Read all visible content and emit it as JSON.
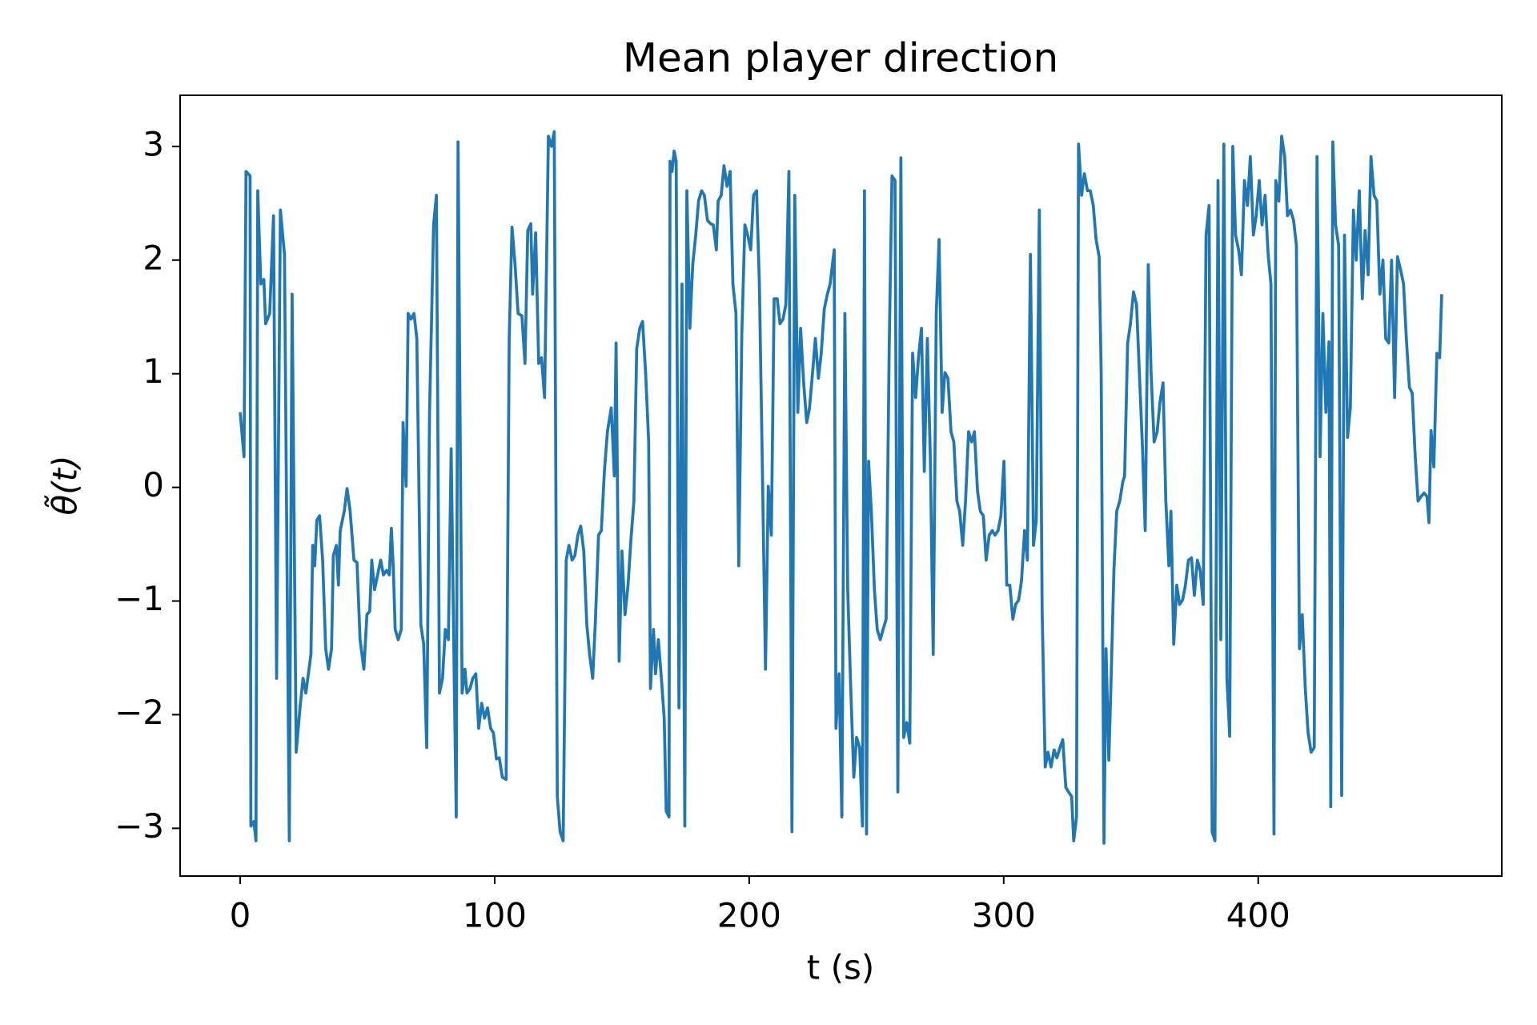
{
  "chart_data": {
    "type": "line",
    "title": "Mean player direction",
    "xlabel": "t (s)",
    "ylabel": "θ̃(t)",
    "color": "#1f77b4",
    "x": [
      0,
      1.5,
      2.3,
      3.9,
      4.2,
      5.4,
      6.2,
      6.9,
      8.1,
      9.3,
      10.0,
      11.6,
      13.1,
      14.3,
      15.8,
      17.4,
      19.3,
      20.4,
      22.0,
      23.5,
      24.7,
      25.8,
      27.8,
      28.5,
      29.3,
      30.1,
      31.2,
      32.4,
      33.6,
      34.7,
      35.9,
      36.6,
      37.8,
      38.6,
      39.3,
      40.9,
      42.0,
      43.2,
      44.7,
      45.9,
      47.1,
      48.6,
      49.8,
      50.9,
      51.7,
      52.8,
      54.0,
      55.2,
      56.3,
      57.5,
      58.6,
      59.4,
      60.2,
      60.9,
      62.1,
      63.3,
      64.0,
      65.2,
      66.0,
      67.1,
      68.3,
      69.4,
      71.0,
      72.1,
      73.3,
      74.4,
      76.0,
      77.1,
      78.3,
      79.5,
      80.6,
      81.8,
      82.9,
      84.1,
      84.9,
      85.6,
      87.2,
      88.3,
      89.1,
      90.3,
      91.4,
      92.6,
      93.7,
      94.9,
      96.0,
      97.2,
      98.4,
      99.5,
      100.7,
      101.8,
      103.0,
      104.5,
      105.7,
      106.8,
      108.0,
      109.2,
      110.7,
      111.9,
      113.0,
      114.2,
      114.9,
      116.1,
      117.3,
      118.4,
      119.6,
      121.1,
      122.3,
      123.4,
      124.6,
      125.7,
      126.9,
      128.1,
      129.2,
      130.4,
      131.5,
      132.7,
      133.8,
      135.0,
      136.2,
      137.3,
      138.5,
      139.6,
      140.8,
      141.9,
      143.1,
      144.3,
      145.8,
      147.0,
      147.7,
      148.9,
      150.0,
      151.2,
      152.4,
      153.5,
      154.7,
      155.8,
      157.0,
      158.1,
      159.3,
      160.5,
      161.2,
      162.4,
      163.2,
      164.3,
      165.5,
      166.6,
      167.4,
      168.5,
      168.9,
      169.7,
      170.5,
      171.3,
      172.4,
      173.6,
      174.7,
      175.5,
      176.7,
      177.8,
      179.0,
      180.1,
      181.3,
      182.4,
      183.6,
      184.8,
      185.9,
      187.1,
      187.8,
      189.0,
      190.1,
      191.3,
      192.5,
      193.6,
      194.8,
      195.9,
      197.1,
      198.3,
      199.4,
      200.6,
      201.7,
      202.9,
      204.0,
      205.2,
      206.4,
      207.5,
      208.7,
      209.8,
      211.0,
      212.1,
      213.3,
      214.4,
      215.6,
      216.8,
      217.9,
      219.1,
      220.2,
      221.4,
      222.6,
      223.7,
      224.9,
      226.0,
      227.2,
      228.3,
      229.5,
      230.7,
      231.8,
      233.4,
      234.1,
      235.3,
      236.4,
      237.6,
      238.7,
      239.9,
      241.1,
      242.2,
      243.4,
      244.5,
      245.3,
      246.1,
      246.9,
      248.0,
      249.2,
      250.3,
      251.5,
      252.6,
      253.8,
      255.0,
      256.1,
      257.3,
      258.4,
      259.6,
      260.7,
      261.9,
      263.1,
      264.2,
      265.4,
      266.5,
      267.7,
      268.8,
      270.0,
      271.2,
      272.3,
      273.5,
      274.6,
      275.8,
      276.9,
      278.1,
      279.3,
      280.4,
      281.6,
      282.7,
      283.9,
      285.0,
      286.2,
      287.4,
      288.5,
      289.7,
      290.8,
      292.0,
      293.1,
      294.3,
      295.5,
      296.6,
      297.8,
      298.9,
      300.1,
      301.2,
      302.4,
      303.6,
      304.7,
      305.9,
      307.0,
      308.2,
      309.3,
      310.5,
      311.7,
      312.8,
      314.0,
      315.1,
      316.3,
      317.4,
      318.6,
      319.8,
      320.9,
      322.1,
      323.2,
      324.4,
      325.5,
      326.7,
      327.5,
      328.6,
      329.4,
      330.6,
      331.7,
      332.9,
      334.0,
      335.2,
      336.3,
      337.5,
      338.3,
      339.4,
      340.2,
      341.3,
      342.1,
      343.3,
      344.4,
      345.6,
      346.8,
      347.5,
      348.7,
      349.8,
      351.0,
      352.2,
      353.3,
      354.5,
      355.6,
      356.8,
      357.9,
      359.1,
      360.3,
      361.4,
      362.6,
      363.7,
      364.9,
      365.7,
      366.8,
      368.0,
      369.1,
      370.3,
      371.4,
      372.6,
      373.8,
      374.9,
      376.1,
      377.2,
      378.4,
      379.5,
      380.7,
      381.9,
      383.0,
      384.2,
      385.3,
      386.5,
      387.7,
      388.8,
      390.0,
      391.1,
      392.3,
      393.4,
      394.6,
      395.8,
      396.9,
      398.1,
      399.2,
      400.4,
      401.5,
      402.7,
      403.9,
      405.0,
      406.2,
      406.9,
      408.1,
      409.2,
      410.4,
      411.5,
      412.7,
      413.9,
      415.0,
      416.2,
      417.3,
      418.5,
      419.6,
      420.8,
      422.0,
      423.1,
      424.3,
      425.4,
      426.6,
      427.8,
      428.5,
      429.3,
      430.4,
      431.6,
      432.8,
      433.9,
      435.1,
      436.2,
      437.4,
      438.5,
      439.7,
      440.9,
      442.0,
      443.2,
      444.3,
      445.5,
      446.6,
      447.8,
      449.0,
      450.1,
      451.3,
      452.4,
      453.6,
      454.7,
      455.9,
      457.1,
      458.2,
      459.4,
      460.5,
      461.7,
      462.8,
      464.0,
      465.2,
      466.3,
      467.1,
      467.9,
      469.0,
      470.2,
      471.3,
      472.1
    ],
    "values": [
      0.66,
      0.27,
      2.78,
      2.74,
      -2.98,
      -2.94,
      -3.11,
      2.61,
      1.79,
      1.83,
      1.44,
      1.53,
      2.39,
      -1.68,
      2.44,
      2.05,
      -3.11,
      1.7,
      -2.33,
      -1.94,
      -1.68,
      -1.81,
      -1.47,
      -0.51,
      -0.69,
      -0.29,
      -0.25,
      -0.64,
      -1.42,
      -1.6,
      -1.42,
      -0.6,
      -0.51,
      -0.86,
      -0.38,
      -0.21,
      -0.01,
      -0.21,
      -0.64,
      -0.66,
      -1.34,
      -1.6,
      -1.12,
      -1.09,
      -0.64,
      -0.9,
      -0.77,
      -0.64,
      -0.77,
      -0.73,
      -0.77,
      -0.36,
      -0.73,
      -1.25,
      -1.34,
      -1.25,
      0.57,
      0.01,
      1.53,
      1.48,
      1.53,
      1.31,
      -1.21,
      -1.38,
      -2.29,
      0.66,
      2.31,
      2.57,
      -1.81,
      -1.68,
      -1.25,
      -1.34,
      0.34,
      -1.68,
      -2.9,
      3.04,
      -1.81,
      -1.6,
      -1.81,
      -1.77,
      -1.68,
      -1.64,
      -2.12,
      -1.9,
      -2.03,
      -1.94,
      -2.12,
      -2.16,
      -2.39,
      -2.38,
      -2.55,
      -2.57,
      1.31,
      2.29,
      1.96,
      1.53,
      1.51,
      1.09,
      2.26,
      2.32,
      1.7,
      2.24,
      1.09,
      1.14,
      0.79,
      3.09,
      3.0,
      3.13,
      -2.72,
      -3.03,
      -3.11,
      -0.64,
      -0.51,
      -0.64,
      -0.6,
      -0.42,
      -0.34,
      -0.56,
      -1.21,
      -1.47,
      -1.68,
      -1.16,
      -0.42,
      -0.38,
      0.14,
      0.49,
      0.7,
      0.1,
      1.27,
      -1.53,
      -0.56,
      -1.12,
      -0.86,
      -0.47,
      -0.12,
      1.22,
      1.4,
      1.46,
      1.01,
      0.4,
      -1.77,
      -1.25,
      -1.64,
      -1.34,
      -1.68,
      -2.03,
      -2.85,
      -2.9,
      2.87,
      2.78,
      2.96,
      2.87,
      -1.94,
      1.79,
      -2.98,
      2.61,
      1.4,
      1.96,
      2.22,
      2.52,
      2.61,
      2.57,
      2.35,
      2.32,
      2.31,
      2.09,
      2.52,
      2.57,
      2.83,
      2.65,
      2.78,
      1.79,
      1.53,
      -0.69,
      1.35,
      2.31,
      2.22,
      2.09,
      2.57,
      2.61,
      1.79,
      0.14,
      -1.6,
      0.01,
      -0.42,
      1.66,
      1.66,
      1.44,
      1.48,
      1.61,
      2.78,
      -3.03,
      2.57,
      0.66,
      1.4,
      0.92,
      0.57,
      0.7,
      1.01,
      1.31,
      0.96,
      1.18,
      1.57,
      1.7,
      1.79,
      2.09,
      -2.12,
      -1.64,
      -2.9,
      1.53,
      -0.9,
      -1.77,
      -2.55,
      -2.2,
      -2.29,
      -2.98,
      2.61,
      -3.05,
      0.23,
      -0.21,
      -0.9,
      -1.25,
      -1.34,
      -1.25,
      -1.16,
      1.22,
      2.74,
      2.7,
      -2.68,
      2.9,
      -2.2,
      -2.07,
      -2.25,
      1.18,
      0.79,
      1.14,
      1.4,
      0.14,
      1.31,
      0.23,
      -1.47,
      1.53,
      2.18,
      0.66,
      1.01,
      0.96,
      0.49,
      0.4,
      -0.12,
      -0.21,
      -0.51,
      -0.12,
      0.49,
      0.4,
      0.49,
      -0.03,
      -0.21,
      -0.25,
      -0.64,
      -0.42,
      -0.38,
      -0.42,
      -0.38,
      -0.25,
      0.23,
      -0.86,
      -0.86,
      -1.16,
      -1.03,
      -0.99,
      -0.82,
      -0.38,
      -0.64,
      2.05,
      -0.51,
      -0.29,
      2.44,
      -1.08,
      -2.46,
      -2.33,
      -2.46,
      -2.31,
      -2.38,
      -2.29,
      -2.22,
      -2.64,
      -2.68,
      -2.72,
      -3.11,
      -2.9,
      3.02,
      2.57,
      2.76,
      2.61,
      2.61,
      2.48,
      2.18,
      2.03,
      1.01,
      -3.13,
      -1.42,
      -2.4,
      -1.77,
      -0.73,
      -0.21,
      -0.12,
      0.05,
      0.1,
      1.27,
      1.44,
      1.72,
      1.61,
      1.01,
      0.36,
      -0.38,
      1.96,
      1.01,
      0.4,
      0.49,
      0.75,
      0.92,
      -0.12,
      -0.69,
      -0.21,
      -1.38,
      -0.86,
      -1.03,
      -0.99,
      -0.86,
      -0.64,
      -0.62,
      -0.95,
      -0.64,
      -0.73,
      -1.03,
      2.22,
      2.48,
      -3.03,
      -3.11,
      2.7,
      -1.34,
      3.02,
      -1.68,
      -2.19,
      3.0,
      2.22,
      2.09,
      1.87,
      2.7,
      2.48,
      2.91,
      2.22,
      2.39,
      2.7,
      2.31,
      2.57,
      2.05,
      1.79,
      -3.05,
      2.7,
      2.52,
      3.09,
      2.91,
      2.39,
      2.44,
      2.35,
      2.13,
      -1.42,
      -1.12,
      -1.77,
      -2.16,
      -2.33,
      -2.29,
      2.91,
      0.27,
      1.53,
      0.66,
      1.28,
      -2.81,
      3.04,
      2.31,
      2.13,
      -2.71,
      2.22,
      0.44,
      0.7,
      2.44,
      2.0,
      2.61,
      1.66,
      2.26,
      1.87,
      2.91,
      2.57,
      2.52,
      1.7,
      2.0,
      1.31,
      1.27,
      2.0,
      0.79,
      2.03,
      1.92,
      1.79,
      1.31,
      0.88,
      0.83,
      0.27,
      -0.12,
      -0.08,
      -0.05,
      -0.08,
      -0.31,
      0.5,
      0.18,
      1.18,
      1.14,
      1.7
    ],
    "xlim": [
      -23.6,
      495.7
    ],
    "ylim": [
      -3.42,
      3.45
    ],
    "xticks": [
      0,
      100,
      200,
      300,
      400
    ],
    "yticks": [
      {
        "value": -3,
        "label": "−3"
      },
      {
        "value": -2,
        "label": "−2"
      },
      {
        "value": -1,
        "label": "−1"
      },
      0,
      1,
      2,
      3
    ]
  }
}
